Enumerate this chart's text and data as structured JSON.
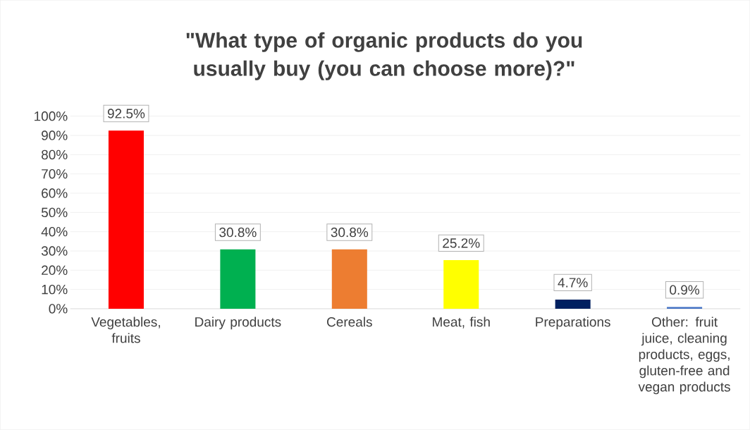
{
  "chart_data": {
    "type": "bar",
    "title": "\"What type of organic products do you usually buy (you can choose more)?\"",
    "categories": [
      "Vegetables, fruits",
      "Dairy products",
      "Cereals",
      "Meat, fish",
      "Preparations",
      "Other: fruit juice, cleaning products, eggs, gluten-free and vegan products"
    ],
    "values": [
      92.5,
      30.8,
      30.8,
      25.2,
      4.7,
      0.9
    ],
    "value_labels": [
      "92.5%",
      "30.8%",
      "30.8%",
      "25.2%",
      "4.7%",
      "0.9%"
    ],
    "colors": [
      "#ff0000",
      "#00b050",
      "#ed7d31",
      "#ffff00",
      "#002060",
      "#4472c4"
    ],
    "ylim": [
      0,
      100
    ],
    "yticks": [
      {
        "value": 0,
        "label": "0%"
      },
      {
        "value": 10,
        "label": "10%"
      },
      {
        "value": 20,
        "label": "20%"
      },
      {
        "value": 30,
        "label": "30%"
      },
      {
        "value": 40,
        "label": "40%"
      },
      {
        "value": 50,
        "label": "50%"
      },
      {
        "value": 60,
        "label": "60%"
      },
      {
        "value": 70,
        "label": "70%"
      },
      {
        "value": 80,
        "label": "80%"
      },
      {
        "value": 90,
        "label": "90%"
      },
      {
        "value": 100,
        "label": "100%"
      }
    ],
    "grid": "y"
  }
}
